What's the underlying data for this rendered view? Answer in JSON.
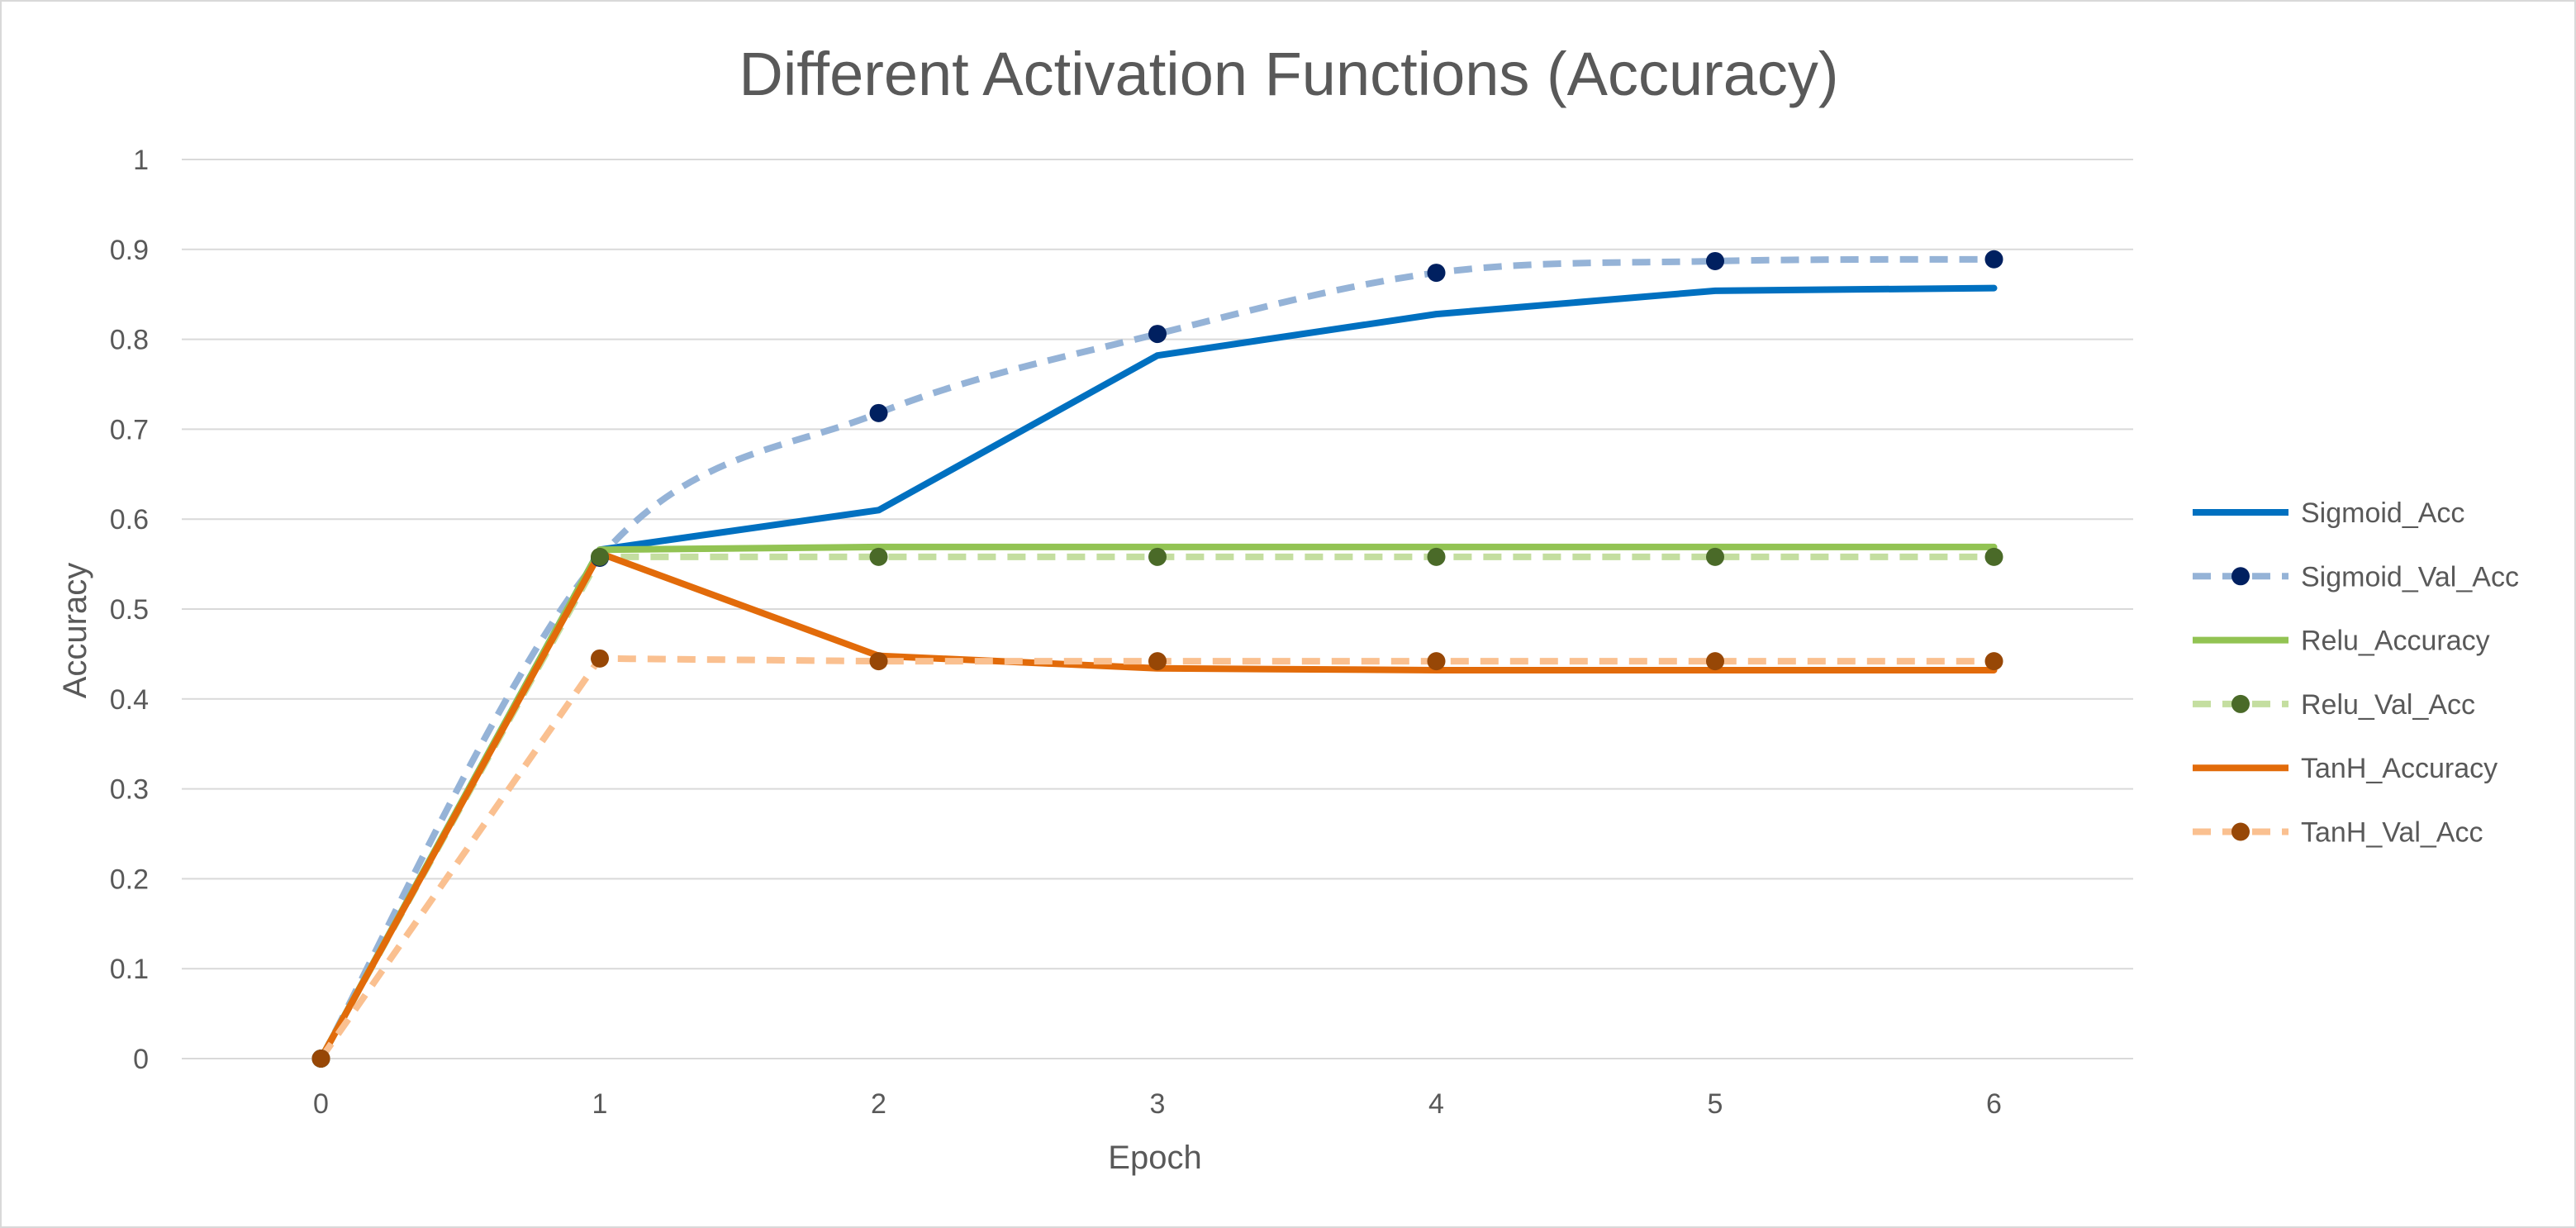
{
  "chart_data": {
    "type": "line",
    "title": "Different Activation Functions (Accuracy)",
    "xlabel": "Epoch",
    "ylabel": "Accuracy",
    "x": [
      0,
      1,
      2,
      3,
      4,
      5,
      6
    ],
    "xlim": [
      0,
      6
    ],
    "ylim": [
      0,
      1
    ],
    "y_ticks": [
      0,
      0.1,
      0.2,
      0.3,
      0.4,
      0.5,
      0.6,
      0.7,
      0.8,
      0.9,
      1
    ],
    "y_tick_labels": [
      "0",
      "0.1",
      "0.2",
      "0.3",
      "0.4",
      "0.5",
      "0.6",
      "0.7",
      "0.8",
      "0.9",
      "1"
    ],
    "x_tick_labels": [
      "0",
      "1",
      "2",
      "3",
      "4",
      "5",
      "6"
    ],
    "grid": true,
    "legend_position": "right",
    "series": [
      {
        "name": "Sigmoid_Acc",
        "values": [
          0,
          0.566,
          0.61,
          0.782,
          0.828,
          0.854,
          0.857
        ],
        "color": "#0070c0",
        "dashed": false,
        "markers": false,
        "curved": false
      },
      {
        "name": "Sigmoid_Val_Acc",
        "values": [
          0,
          0.557,
          0.718,
          0.806,
          0.874,
          0.887,
          0.889
        ],
        "color": "#95b3d7",
        "marker_color": "#002060",
        "dashed": true,
        "markers": true,
        "curved": true
      },
      {
        "name": "Relu_Accuracy",
        "values": [
          0,
          0.566,
          0.569,
          0.569,
          0.569,
          0.569,
          0.569
        ],
        "color": "#92c353",
        "dashed": false,
        "markers": false,
        "curved": false
      },
      {
        "name": "Relu_Val_Acc",
        "values": [
          0,
          0.558,
          0.558,
          0.558,
          0.558,
          0.558,
          0.558
        ],
        "color": "#c4dea0",
        "marker_color": "#4a6a28",
        "dashed": true,
        "markers": true,
        "curved": false
      },
      {
        "name": "TanH_Accuracy",
        "values": [
          0,
          0.562,
          0.448,
          0.434,
          0.432,
          0.432,
          0.432
        ],
        "color": "#e26b0a",
        "dashed": false,
        "markers": false,
        "curved": false
      },
      {
        "name": "TanH_Val_Acc",
        "values": [
          0,
          0.445,
          0.442,
          0.442,
          0.442,
          0.442,
          0.442
        ],
        "color": "#fac090",
        "marker_color": "#974706",
        "dashed": true,
        "markers": true,
        "curved": false
      }
    ]
  }
}
